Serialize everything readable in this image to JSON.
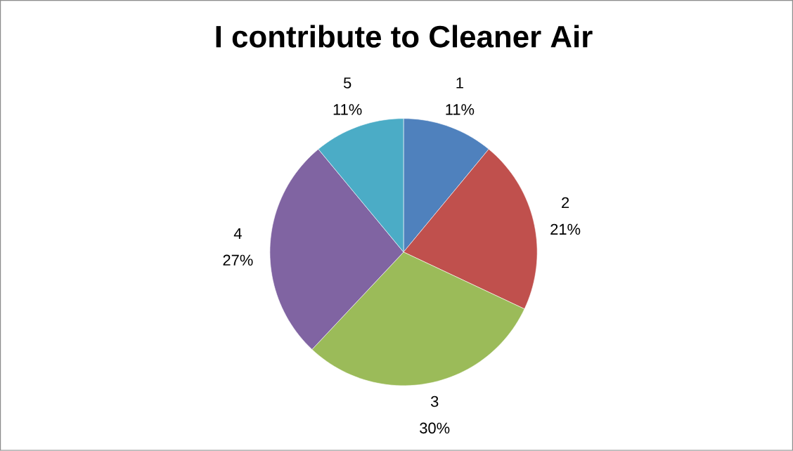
{
  "chart_data": {
    "type": "pie",
    "title": "I contribute to Cleaner Air",
    "categories": [
      "1",
      "2",
      "3",
      "4",
      "5"
    ],
    "values": [
      11,
      21,
      30,
      27,
      11
    ],
    "colors": [
      "#4f81bd",
      "#c0504d",
      "#9bbb59",
      "#8064a2",
      "#4bacc6"
    ],
    "value_labels": [
      "11%",
      "21%",
      "30%",
      "27%",
      "11%"
    ]
  }
}
